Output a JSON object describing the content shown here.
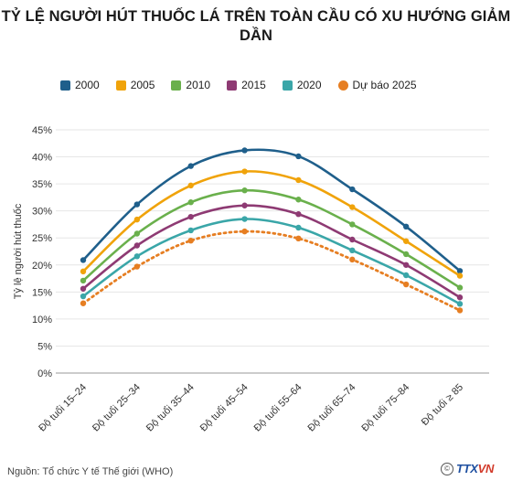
{
  "title": "TỶ LỆ NGƯỜI HÚT THUỐC LÁ TRÊN TOÀN CẦU CÓ XU HƯỚNG GIẢM DẦN",
  "source": "Nguồn: Tổ chức Y tế Thế giới (WHO)",
  "logo": {
    "copyright": "©",
    "text_a": "TTX",
    "text_b": "VN"
  },
  "chart_data": {
    "type": "line",
    "title": "TỶ LỆ NGƯỜI HÚT THUỐC LÁ TRÊN TOÀN CẦU CÓ XU HƯỚNG GIẢM DẦN",
    "xlabel": "",
    "ylabel": "Tỷ lệ người hút thuốc",
    "ylim": [
      0,
      45
    ],
    "yticks": [
      "0%",
      "5%",
      "10%",
      "15%",
      "20%",
      "25%",
      "30%",
      "35%",
      "40%",
      "45%"
    ],
    "grid": true,
    "legend_position": "top",
    "categories": [
      "Độ tuổi 15–24",
      "Độ tuổi 25–34",
      "Độ tuổi 35–44",
      "Độ tuổi 45–54",
      "Độ tuổi 55–64",
      "Độ tuổi 65–74",
      "Độ tuổi 75–84",
      "Độ tuổi ≥ 85"
    ],
    "series": [
      {
        "name": "2000",
        "color": "#1f5f8b",
        "dashed": false,
        "values": [
          20.9,
          31.2,
          38.3,
          41.2,
          40.1,
          34.0,
          27.1,
          18.9
        ]
      },
      {
        "name": "2005",
        "color": "#f0a30a",
        "dashed": false,
        "values": [
          18.8,
          28.4,
          34.7,
          37.3,
          35.7,
          30.7,
          24.4,
          18.0
        ]
      },
      {
        "name": "2010",
        "color": "#6ab04c",
        "dashed": false,
        "values": [
          17.1,
          25.8,
          31.6,
          33.8,
          32.1,
          27.5,
          22.0,
          15.8
        ]
      },
      {
        "name": "2015",
        "color": "#8e3a73",
        "dashed": false,
        "values": [
          15.6,
          23.6,
          28.9,
          31.0,
          29.4,
          24.7,
          20.0,
          14.0
        ]
      },
      {
        "name": "2020",
        "color": "#3aa6a8",
        "dashed": false,
        "values": [
          14.2,
          21.6,
          26.4,
          28.5,
          26.9,
          22.7,
          18.1,
          12.8
        ]
      },
      {
        "name": "Dự báo 2025",
        "color": "#e67e22",
        "dashed": true,
        "values": [
          12.9,
          19.7,
          24.5,
          26.2,
          24.9,
          21.0,
          16.4,
          11.6
        ]
      }
    ]
  }
}
